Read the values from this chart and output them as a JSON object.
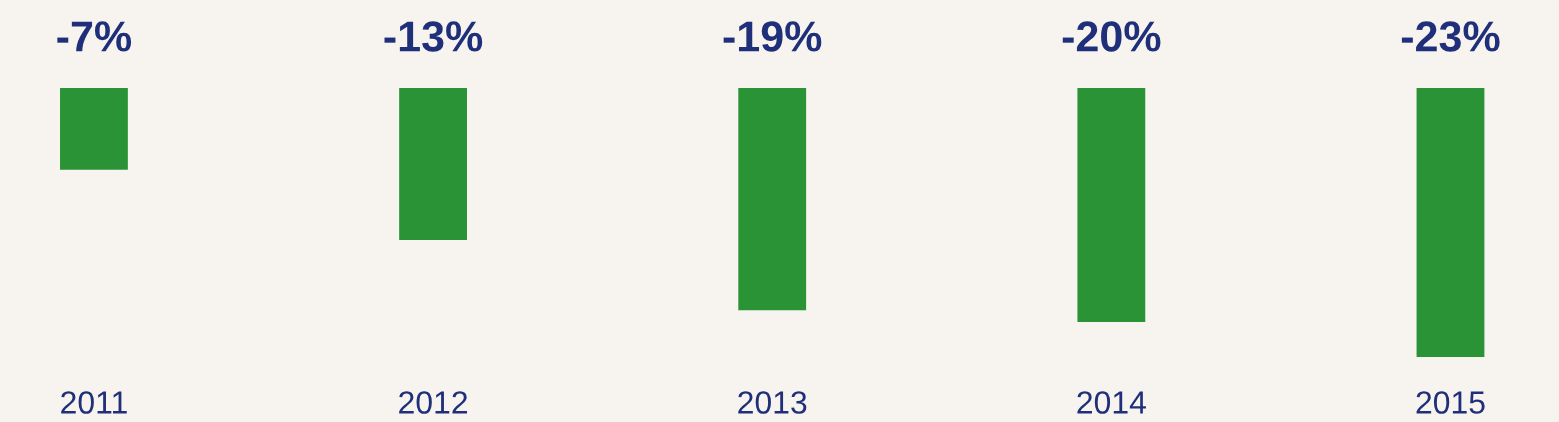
{
  "chart_data": {
    "type": "bar",
    "categories": [
      "2011",
      "2012",
      "2013",
      "2014",
      "2015"
    ],
    "values": [
      -7,
      -13,
      -19,
      -20,
      -23
    ],
    "color": "#2a9336",
    "value_labels": [
      "-7%",
      "-13%",
      "-19%",
      "-20%",
      "-23%"
    ],
    "tick_labels": "x"
  }
}
